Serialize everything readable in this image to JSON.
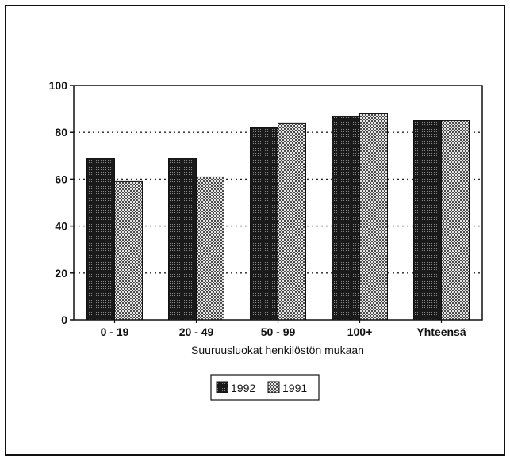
{
  "chart_data": {
    "type": "bar",
    "title": "",
    "xlabel": "Suuruusluokat henkilöstön mukaan",
    "ylabel": "",
    "categories": [
      "0 - 19",
      "20 - 49",
      "50 - 99",
      "100+",
      "Yhteensä"
    ],
    "series": [
      {
        "name": "1992",
        "values": [
          69,
          69,
          82,
          87,
          85
        ],
        "color": "#2b2b2b",
        "pattern": "dense-dots"
      },
      {
        "name": "1991",
        "values": [
          59,
          61,
          84,
          88,
          85
        ],
        "color": "#a8a8a8",
        "pattern": "light-checker"
      }
    ],
    "ylim": [
      0,
      100
    ],
    "yticks": [
      0,
      20,
      40,
      60,
      80,
      100
    ],
    "grid": "horizontal dotted",
    "legend_position": "bottom-center"
  }
}
